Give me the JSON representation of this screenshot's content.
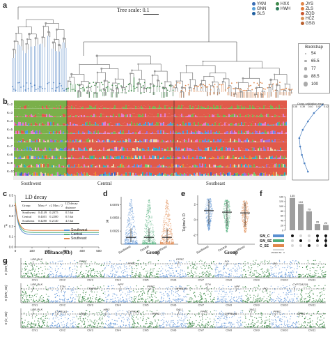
{
  "panels": {
    "a": "a",
    "b": "b",
    "c": "c",
    "d": "d",
    "e": "e",
    "f": "f",
    "g": "g"
  },
  "tree": {
    "scale_label": "Tree scale: 0.1",
    "populations_left": [
      {
        "name": "YKM",
        "color": "#3a6db5"
      },
      {
        "name": "GNN",
        "color": "#58a0d8"
      },
      {
        "name": "SLS",
        "color": "#1f5fa0"
      }
    ],
    "populations_mid": [
      {
        "name": "HXX",
        "color": "#3f8a4a"
      },
      {
        "name": "HWH",
        "color": "#2e7d5a"
      }
    ],
    "populations_right": [
      {
        "name": "JYS",
        "color": "#e0864a"
      },
      {
        "name": "ZLS",
        "color": "#e37a38"
      },
      {
        "name": "ZQD",
        "color": "#c9562f"
      },
      {
        "name": "HCZ",
        "color": "#d9935a"
      },
      {
        "name": "GSG",
        "color": "#b9612f"
      }
    ],
    "bootstrap_title": "Bootstrap",
    "bootstrap_values": [
      "54",
      "65.5",
      "77",
      "88.5",
      "100"
    ]
  },
  "structure": {
    "k_labels": [
      "K=2",
      "K=3",
      "K=4",
      "K=5",
      "K=6",
      "K=7",
      "K=8",
      "K=9",
      "K=10"
    ],
    "group_labels": [
      "Southwest",
      "Central",
      "Southeast"
    ],
    "cv_title": "Cross validation error",
    "cv_ticks": [
      "0.38",
      "0.39",
      "0.40",
      "0.41",
      "0.42"
    ]
  },
  "ld": {
    "title": "LD decay",
    "headers": [
      "Group",
      "Max r²",
      "r2 Max / 2",
      "LD decay distance"
    ],
    "rows": [
      [
        "Southwest",
        "0.4149",
        "0.2075",
        "0.5 kb"
      ],
      [
        "Central",
        "0.4401",
        "0.2200",
        "0.5 kb"
      ],
      [
        "Southeast",
        "0.4280",
        "0.2140",
        "4.5 kb"
      ]
    ],
    "ylabel": "r²",
    "xlabel": "Distance(Kb)",
    "yticks": [
      "0.0",
      "0.1",
      "0.2",
      "0.3",
      "0.4",
      "0.5"
    ],
    "xticks": [
      "0",
      "100",
      "200",
      "300",
      "400",
      "500"
    ],
    "legend": [
      {
        "name": "Southwest",
        "color": "#5a8fd0"
      },
      {
        "name": "Central",
        "color": "#4fae7a"
      },
      {
        "name": "Southeast",
        "color": "#e0864a"
      }
    ]
  },
  "pi": {
    "ylabel": "π",
    "xlabel": "Group",
    "yticks": [
      "0.0025",
      "0.0050",
      "0.0075"
    ],
    "groups": [
      "Southwest",
      "Central",
      "Southeast"
    ]
  },
  "tajima": {
    "ylabel": "Tajima's D",
    "xlabel": "Group",
    "yticks": [
      "-2",
      "0",
      "2"
    ],
    "groups": [
      "Southwest",
      "Central",
      "Southeast"
    ]
  },
  "upset": {
    "counts": [
      135,
      110,
      79,
      26,
      22
    ],
    "yticks": [
      "0",
      "20",
      "40",
      "60",
      "80",
      "100",
      "120",
      "140"
    ],
    "sets": [
      "SW_C",
      "SW_SE",
      "C_SE"
    ],
    "set_colors": [
      "#5a8fd0",
      "#4fae7a",
      "#e0864a"
    ],
    "set_axis": [
      "150",
      "100",
      "50",
      "0"
    ]
  },
  "manhattan": {
    "tracks": [
      {
        "ylabel": "π (SW_C)",
        "top_label_color": "#3a7a3a"
      },
      {
        "ylabel": "π (SW_SE)",
        "top_label_color": "#3a7a3a"
      },
      {
        "ylabel": "π (C_SE)",
        "top_label_color": "#3a7a3a"
      }
    ],
    "chromosomes": [
      "Chr1",
      "Chr2",
      "Chr3",
      "Chr4",
      "Chr5",
      "Chr6",
      "Chr7",
      "Chr8",
      "Chr9",
      "Chr10",
      "Chr11"
    ],
    "genes_track1": [
      "LRR-RLK",
      "PPRC",
      "PPRC",
      "PPRC",
      "PO",
      "PO"
    ],
    "genes_track2": [
      "LRR-RLK",
      "S7H",
      "RAP2.7",
      "NPF",
      "PPRC",
      "MYB114",
      "S7H",
      "NPF",
      "PO",
      "CYP72A219"
    ],
    "genes_track3": [
      "LRR-RLK",
      "CYP81A1",
      "LHW",
      "HBI2",
      "CYP81A1",
      "PPRC",
      "SAL1",
      "PPRC",
      "CYP94A5",
      "JAG2",
      "PPRC",
      "PPRC"
    ]
  }
}
